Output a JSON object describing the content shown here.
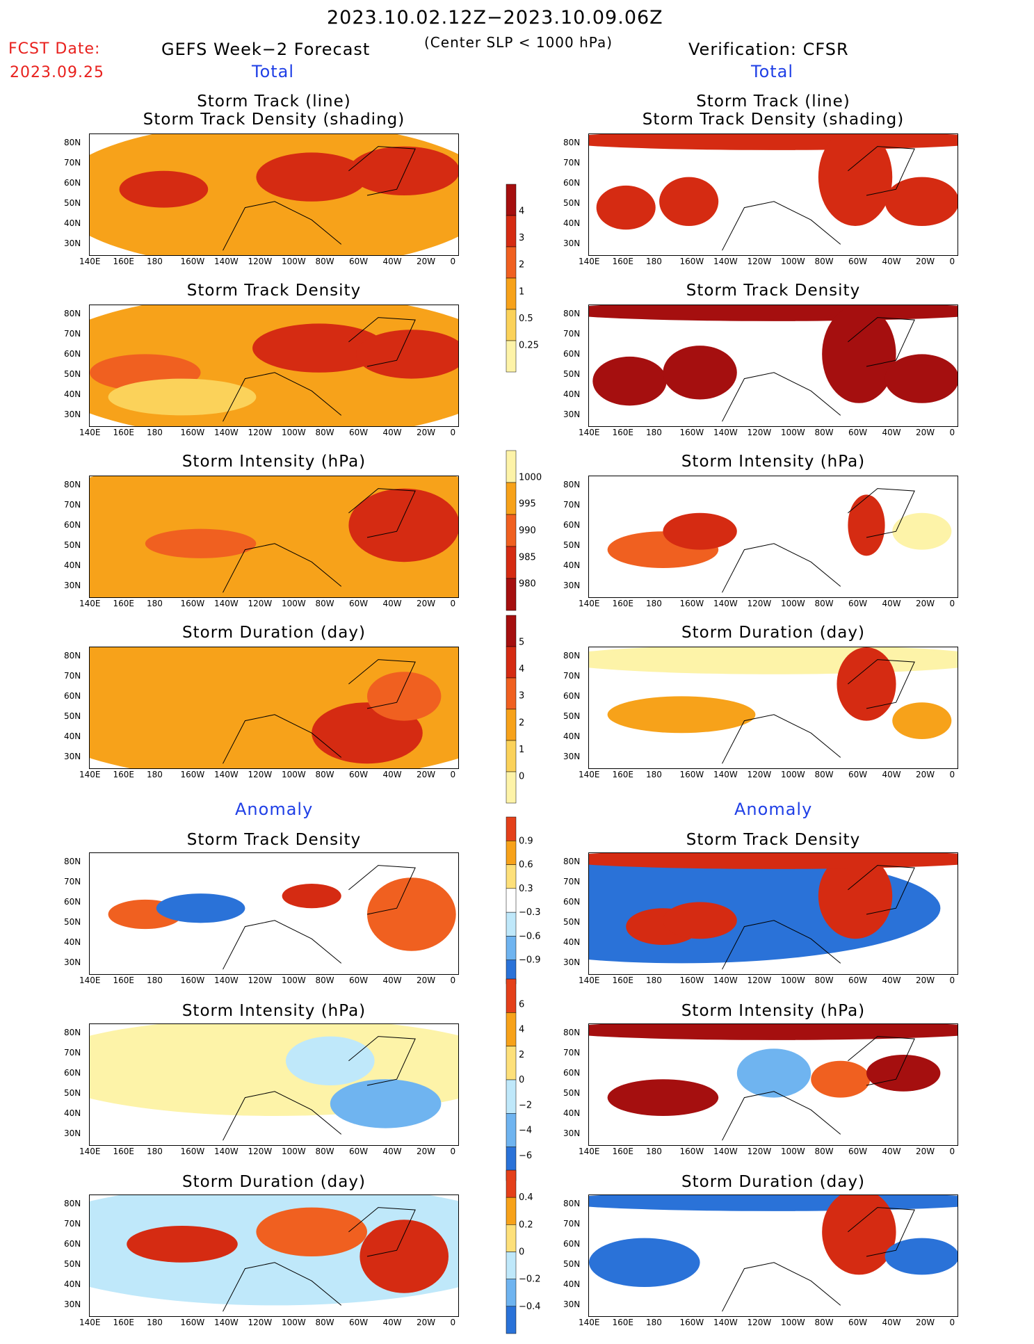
{
  "header": {
    "title": "2023.10.02.12Z−2023.10.09.06Z",
    "subtitle": "(Center SLP < 1000 hPa)",
    "fcst_label": "FCST Date:",
    "fcst_date": "2023.09.25",
    "left_title": "GEFS Week−2 Forecast",
    "right_title": "Verification: CFSR",
    "total_label": "Total",
    "anomaly_label": "Anomaly"
  },
  "axes": {
    "lat_labels": [
      "80N",
      "70N",
      "60N",
      "50N",
      "40N",
      "30N"
    ],
    "lon_labels": [
      "140E",
      "160E",
      "180",
      "160W",
      "140W",
      "120W",
      "100W",
      "80W",
      "60W",
      "40W",
      "20W",
      "0"
    ]
  },
  "panels": {
    "track_line_title1": "Storm Track (line)",
    "track_line_title2": "Storm Track Density (shading)",
    "density_title": "Storm Track Density",
    "intensity_title": "Storm Intensity (hPa)",
    "duration_title": "Storm Duration (day)"
  },
  "colorbars": {
    "density_total": {
      "labels": [
        "4",
        "3",
        "2",
        "1",
        "0.5",
        "0.25"
      ],
      "colors": [
        "#a50f0f",
        "#d52b12",
        "#f06020",
        "#f7a21a",
        "#fbd25a",
        "#fdf3a8"
      ]
    },
    "intensity_total": {
      "labels": [
        "1000",
        "995",
        "990",
        "985",
        "980"
      ],
      "colors": [
        "#fdf3a8",
        "#f7a21a",
        "#f06020",
        "#d52b12",
        "#a50f0f"
      ]
    },
    "duration_total": {
      "labels": [
        "5",
        "4",
        "3",
        "2",
        "1",
        "0"
      ],
      "colors": [
        "#a50f0f",
        "#d52b12",
        "#f06020",
        "#f7a21a",
        "#fbd25a",
        "#fdf3a8"
      ]
    },
    "density_anom": {
      "labels": [
        "0.9",
        "0.6",
        "0.3",
        "−0.3",
        "−0.6",
        "−0.9"
      ],
      "colors": [
        "#e4401a",
        "#f7a21a",
        "#fde07a",
        "#ffffff",
        "#bfe8fa",
        "#6fb4f0",
        "#2a72d8"
      ]
    },
    "intensity_anom": {
      "labels": [
        "6",
        "4",
        "2",
        "0",
        "−2",
        "−4",
        "−6"
      ],
      "colors": [
        "#e4401a",
        "#f7a21a",
        "#fde07a",
        "#bfe8fa",
        "#6fb4f0",
        "#2a72d8"
      ]
    },
    "duration_anom": {
      "labels": [
        "0.4",
        "0.2",
        "0",
        "−0.2",
        "−0.4"
      ],
      "colors": [
        "#e4401a",
        "#f7a21a",
        "#fde07a",
        "#bfe8fa",
        "#6fb4f0",
        "#2a72d8"
      ]
    }
  }
}
